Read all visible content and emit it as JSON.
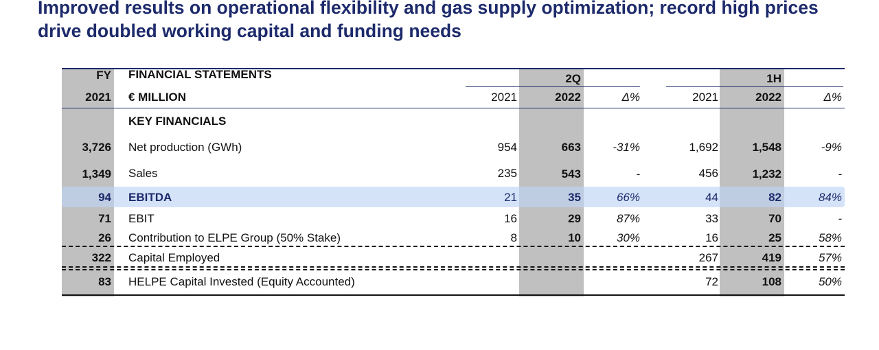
{
  "title": "Improved results on operational flexibility and gas supply optimization; record high prices drive doubled working capital and funding needs",
  "table": {
    "header": {
      "fy_top": "FY",
      "fy_bottom": "2021",
      "label_top": "FINANCIAL STATEMENTS",
      "label_bottom": "€ MILLION",
      "q_group": "2Q",
      "h_group": "1H",
      "q_2021": "2021",
      "q_2022": "2022",
      "q_delta": "Δ%",
      "h_2021": "2021",
      "h_2022": "2022",
      "h_delta": "Δ%"
    },
    "section_label": "KEY FINANCIALS",
    "rows": [
      {
        "fy": "3,726",
        "label": "Net production (GWh)",
        "q2021": "954",
        "q2022": "663",
        "qd": "-31%",
        "h2021": "1,692",
        "h2022": "1,548",
        "hd": "-9%"
      },
      {
        "fy": "1,349",
        "label": "Sales",
        "q2021": "235",
        "q2022": "543",
        "qd": "-",
        "h2021": "456",
        "h2022": "1,232",
        "hd": "-"
      },
      {
        "fy": "94",
        "label": "EBITDA",
        "q2021": "21",
        "q2022": "35",
        "qd": "66%",
        "h2021": "44",
        "h2022": "82",
        "hd": "84%"
      },
      {
        "fy": "71",
        "label": "EBIT",
        "q2021": "16",
        "q2022": "29",
        "qd": "87%",
        "h2021": "33",
        "h2022": "70",
        "hd": "-"
      },
      {
        "fy": "26",
        "label": "Contribution to ELPE Group (50% Stake)",
        "q2021": "8",
        "q2022": "10",
        "qd": "30%",
        "h2021": "16",
        "h2022": "25",
        "hd": "58%"
      },
      {
        "fy": "322",
        "label": "Capital Employed",
        "q2021": "",
        "q2022": "",
        "qd": "",
        "h2021": "267",
        "h2022": "419",
        "hd": "57%"
      },
      {
        "fy": "83",
        "label": "HELPE Capital Invested (Equity Accounted)",
        "q2021": "",
        "q2022": "",
        "qd": "",
        "h2021": "72",
        "h2022": "108",
        "hd": "50%"
      }
    ]
  },
  "colors": {
    "title": "#1d2a6b",
    "band": "#c0c0c0",
    "highlight": "#bed4f6",
    "rule": "#1d2a6b"
  }
}
